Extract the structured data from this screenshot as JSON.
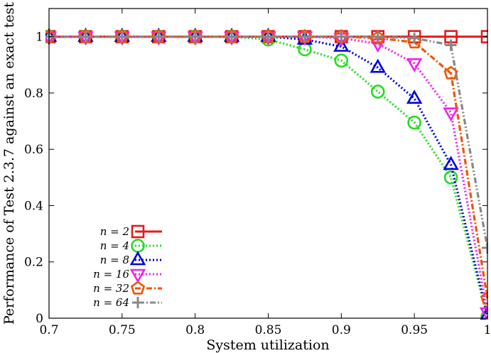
{
  "chart_data": {
    "type": "line",
    "xlabel": "System utilization",
    "ylabel": "Performance of Test 2.3.7 against an exact test",
    "xlim": [
      0.7,
      1.0
    ],
    "ylim": [
      0,
      1.1
    ],
    "xticks": [
      0.7,
      0.75,
      0.8,
      0.85,
      0.9,
      0.95,
      1.0
    ],
    "xtick_labels": [
      "0.7",
      "0.75",
      "0.8",
      "0.85",
      "0.9",
      "0.95",
      "1"
    ],
    "yticks": [
      0,
      0.2,
      0.4,
      0.6,
      0.8,
      1.0
    ],
    "ytick_labels": [
      "0",
      "0.2",
      "0.4",
      "0.6",
      "0.8",
      "1"
    ],
    "grid": false,
    "legend_position": "bottom-left",
    "series": [
      {
        "name": "n = 2",
        "color": "#e41a1c",
        "marker": "square",
        "dash": "solid",
        "x": [
          0.7,
          0.725,
          0.75,
          0.775,
          0.8,
          0.825,
          0.85,
          0.875,
          0.9,
          0.925,
          0.95,
          0.975,
          1.0
        ],
        "y": [
          1,
          1,
          1,
          1,
          1,
          1,
          1,
          1,
          1,
          1,
          1,
          1,
          1
        ]
      },
      {
        "name": "n = 4",
        "color": "#22dd22",
        "marker": "circle",
        "dash": "dotted",
        "x": [
          0.7,
          0.725,
          0.75,
          0.775,
          0.8,
          0.825,
          0.85,
          0.875,
          0.9,
          0.925,
          0.95,
          0.975,
          1.0
        ],
        "y": [
          1,
          1,
          1,
          1,
          1,
          1,
          0.99,
          0.955,
          0.915,
          0.805,
          0.695,
          0.5,
          0.005
        ]
      },
      {
        "name": "n = 8",
        "color": "#0000dd",
        "marker": "triangle-up",
        "dash": "dotted",
        "x": [
          0.7,
          0.725,
          0.75,
          0.775,
          0.8,
          0.825,
          0.85,
          0.875,
          0.9,
          0.925,
          0.95,
          0.975,
          1.0
        ],
        "y": [
          1,
          1,
          1,
          1,
          1,
          1,
          1,
          0.99,
          0.965,
          0.89,
          0.78,
          0.545,
          0.01
        ]
      },
      {
        "name": "n = 16",
        "color": "#ee22ee",
        "marker": "triangle-down",
        "dash": "dotted",
        "x": [
          0.7,
          0.725,
          0.75,
          0.775,
          0.8,
          0.825,
          0.85,
          0.875,
          0.9,
          0.925,
          0.95,
          0.975,
          1.0
        ],
        "y": [
          1,
          1,
          1,
          1,
          1,
          1,
          1,
          1,
          0.995,
          0.975,
          0.905,
          0.73,
          0.02
        ]
      },
      {
        "name": "n = 32",
        "color": "#ee5500",
        "marker": "pentagon",
        "dash": "dashdot",
        "x": [
          0.7,
          0.725,
          0.75,
          0.775,
          0.8,
          0.825,
          0.85,
          0.875,
          0.9,
          0.925,
          0.95,
          0.975,
          1.0
        ],
        "y": [
          1,
          1,
          1,
          1,
          1,
          1,
          1,
          1,
          1,
          0.995,
          0.98,
          0.87,
          0.07
        ]
      },
      {
        "name": "n = 64",
        "color": "#888888",
        "marker": "plus",
        "dash": "dashdotdot",
        "x": [
          0.7,
          0.725,
          0.75,
          0.775,
          0.8,
          0.825,
          0.85,
          0.875,
          0.9,
          0.925,
          0.95,
          0.975,
          1.0
        ],
        "y": [
          1,
          1,
          1,
          1,
          1,
          1,
          1,
          1,
          1,
          1,
          0.995,
          0.97,
          0.25
        ]
      }
    ]
  }
}
